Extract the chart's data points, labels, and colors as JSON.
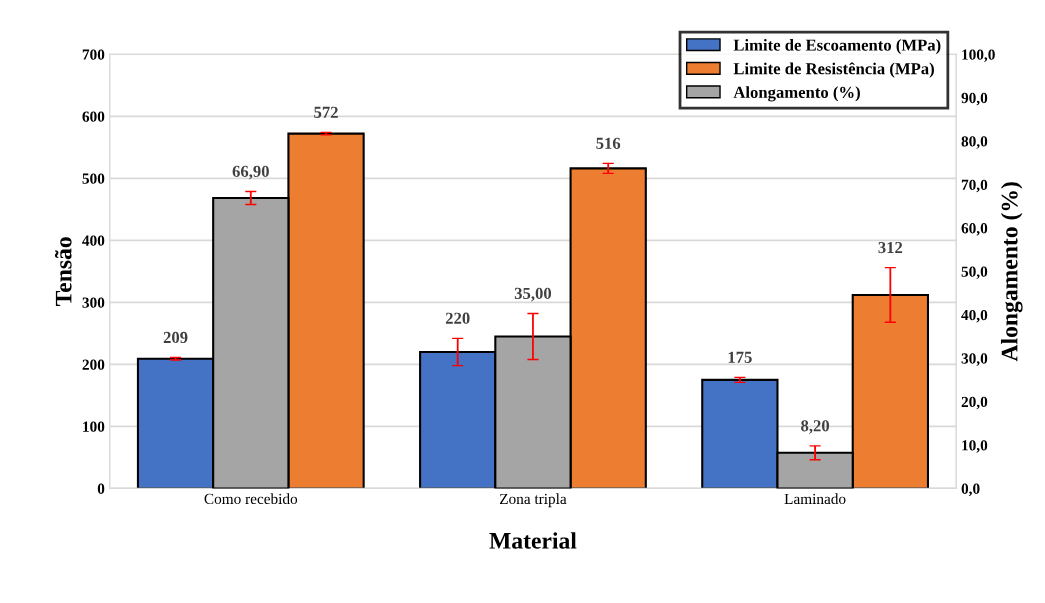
{
  "chart_data": {
    "type": "bar",
    "xlabel": "Material",
    "ylabel": "Tensão",
    "y2label": "Alongamento (%)",
    "categories": [
      "Como recebido",
      "Zona tripla",
      "Laminado"
    ],
    "series": [
      {
        "name": "Limite de Escoamento (MPa)",
        "color": "#4472c4",
        "values": [
          209,
          220,
          175
        ],
        "errors": [
          2,
          22,
          4
        ],
        "value_labels": [
          "209",
          "220",
          "175"
        ]
      },
      {
        "name": "Alongamento (%)",
        "color": "#a5a5a5",
        "values": [
          66.9,
          35.0,
          8.2
        ],
        "errors": [
          1.5,
          5.3,
          1.6
        ],
        "axis": "y2",
        "value_labels": [
          "66,90",
          "35,00",
          "8,20"
        ]
      },
      {
        "name": "Limite de Resistência (MPa)",
        "color": "#ed7d31",
        "values": [
          572,
          516,
          312
        ],
        "errors": [
          2,
          8,
          44
        ],
        "value_labels": [
          "572",
          "516",
          "312"
        ]
      }
    ],
    "ylim": [
      0,
      700
    ],
    "yticks": [
      0,
      100,
      200,
      300,
      400,
      500,
      600,
      700
    ],
    "y2lim": [
      0,
      100
    ],
    "y2ticks": [
      {
        "value": 0,
        "label": "0,0"
      },
      {
        "value": 10,
        "label": "10,0"
      },
      {
        "value": 20,
        "label": "20,0"
      },
      {
        "value": 30,
        "label": "30,0"
      },
      {
        "value": 40,
        "label": "40,0"
      },
      {
        "value": 50,
        "label": "50,0"
      },
      {
        "value": 60,
        "label": "60,0"
      },
      {
        "value": 70,
        "label": "70,0"
      },
      {
        "value": 80,
        "label": "80,0"
      },
      {
        "value": 90,
        "label": "90,0"
      },
      {
        "value": 100,
        "label": "100,0"
      }
    ],
    "grid": "y",
    "legend": "top right"
  }
}
